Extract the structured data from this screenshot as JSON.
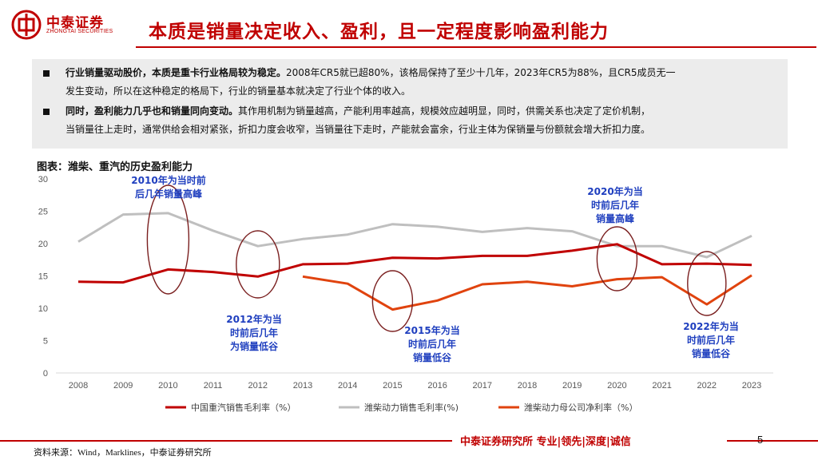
{
  "header": {
    "logo_cn": "中泰证券",
    "logo_en": "ZHONGTAI SECURITIES",
    "title": "本质是销量决定收入、盈利，且一定程度影响盈利能力"
  },
  "summary": {
    "p1_bold": "行业销量驱动股价，本质是重卡行业格局较为稳定。",
    "p1_rest_line1": "2008年CR5就已超80%，该格局保持了至少十几年，2023年CR5为88%，且CR5成员无一",
    "p1_rest_line2": "发生变动，所以在这种稳定的格局下，行业的销量基本就决定了行业个体的收入。",
    "p2_bold": "同时，盈利能力几乎也和销量同向变动。",
    "p2_rest_line1": "其作用机制为销量越高，产能利用率越高，规模效应越明显，同时，供需关系也决定了定价机制，",
    "p2_rest_line2": "当销量往上走时，通常供给会相对紧张，折扣力度会收窄，当销量往下走时，产能就会富余，行业主体为保销量与份额就会增大折扣力度。"
  },
  "figure": {
    "title": "图表：潍柴、重汽的历史盈利能力"
  },
  "chart_data": {
    "type": "line",
    "x": [
      "2008",
      "2009",
      "2010",
      "2011",
      "2012",
      "2013",
      "2014",
      "2015",
      "2016",
      "2017",
      "2018",
      "2019",
      "2020",
      "2021",
      "2022",
      "2023"
    ],
    "ylim": [
      0,
      30
    ],
    "yticks": [
      "0",
      "5",
      "10",
      "15",
      "20",
      "25",
      "30"
    ],
    "grid": false,
    "legend_position": "bottom",
    "series": [
      {
        "name": "中国重汽销售毛利率（%）",
        "color": "#c00000",
        "values": [
          14.1,
          14.0,
          16.0,
          15.6,
          14.9,
          16.8,
          16.9,
          17.8,
          17.7,
          18.1,
          18.1,
          18.9,
          19.9,
          16.8,
          16.9,
          16.7
        ]
      },
      {
        "name": "潍柴动力销售毛利率(%)",
        "color": "#bfbfbf",
        "values": [
          20.3,
          24.5,
          24.7,
          22.0,
          19.6,
          20.7,
          21.4,
          23.0,
          22.6,
          21.8,
          22.4,
          21.9,
          19.6,
          19.6,
          17.9,
          21.2
        ]
      },
      {
        "name": "潍柴动力母公司净利率（%）",
        "color": "#e0430e",
        "values": [
          null,
          null,
          null,
          null,
          null,
          14.9,
          13.8,
          9.8,
          11.2,
          13.7,
          14.1,
          13.4,
          14.5,
          14.8,
          10.6,
          15.1
        ]
      }
    ],
    "annotations": [
      {
        "year": "2010",
        "line1": "2010年为当时前",
        "line2": "后几年销量高峰"
      },
      {
        "year": "2012",
        "line1": "2012年为当",
        "line2": "时前后几年",
        "line3": "为销量低谷"
      },
      {
        "year": "2015",
        "line1": "2015年为当",
        "line2": "时前后几年",
        "line3": "销量低谷"
      },
      {
        "year": "2020",
        "line1": "2020年为当",
        "line2": "时前后几年",
        "line3": "销量高峰"
      },
      {
        "year": "2022",
        "line1": "2022年为当",
        "line2": "时前后几年",
        "line3": "销量低谷"
      }
    ],
    "annotation_color": "#1f3fbf",
    "ellipse_color": "#7a1f1f"
  },
  "footer": {
    "tagline": "中泰证券研究所 专业|领先|深度|诚信",
    "page": "5",
    "source": "资料来源：Wind，Marklines，中泰证券研究所"
  }
}
